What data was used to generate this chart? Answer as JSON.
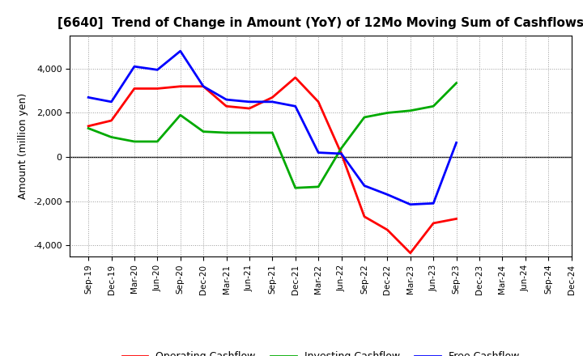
{
  "title": "[6640]  Trend of Change in Amount (YoY) of 12Mo Moving Sum of Cashflows",
  "ylabel": "Amount (million yen)",
  "x_labels": [
    "Sep-19",
    "Dec-19",
    "Mar-20",
    "Jun-20",
    "Sep-20",
    "Dec-20",
    "Mar-21",
    "Jun-21",
    "Sep-21",
    "Dec-21",
    "Mar-22",
    "Jun-22",
    "Sep-22",
    "Dec-22",
    "Mar-23",
    "Jun-23",
    "Sep-23",
    "Dec-23",
    "Mar-24",
    "Jun-24",
    "Sep-24",
    "Dec-24"
  ],
  "operating": [
    1400,
    1650,
    3100,
    3100,
    3200,
    3200,
    2300,
    2200,
    2700,
    3600,
    2500,
    150,
    -2700,
    -3300,
    -4350,
    -3000,
    -2800,
    null,
    null,
    null,
    null,
    null
  ],
  "investing": [
    1300,
    900,
    700,
    700,
    1900,
    1150,
    1100,
    1100,
    1100,
    -1400,
    -1350,
    400,
    1800,
    2000,
    2100,
    2300,
    3350,
    null,
    null,
    null,
    null,
    null
  ],
  "free": [
    2700,
    2500,
    4100,
    3950,
    4800,
    3200,
    2600,
    2500,
    2500,
    2300,
    200,
    150,
    -1300,
    -1700,
    -2150,
    -2100,
    650,
    null,
    null,
    null,
    null,
    null
  ],
  "operating_color": "#ff0000",
  "investing_color": "#00aa00",
  "free_color": "#0000ff",
  "ylim": [
    -4500,
    5500
  ],
  "yticks": [
    -4000,
    -2000,
    0,
    2000,
    4000
  ],
  "background_color": "#ffffff",
  "grid_color": "#999999"
}
